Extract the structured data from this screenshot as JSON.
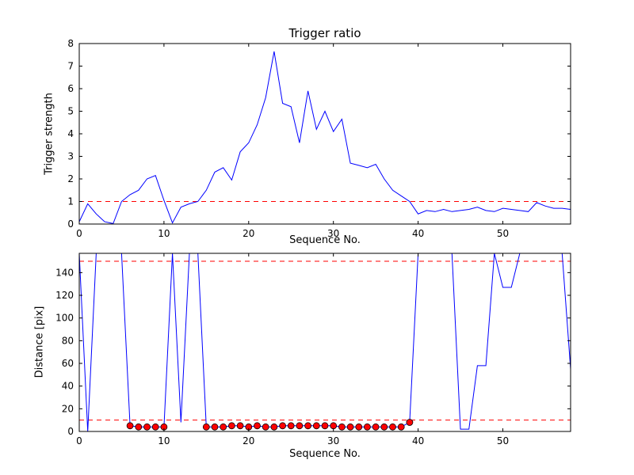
{
  "figure": {
    "background": "#ffffff",
    "colors": {
      "line": "#0000ff",
      "threshold": "#ff0000",
      "marker_face": "#ff0000",
      "marker_edge": "#000000",
      "axis": "#000000"
    }
  },
  "chart_data": [
    {
      "type": "line",
      "title": "Trigger ratio",
      "xlabel": "Sequence No.",
      "ylabel": "Trigger strength",
      "xlim": [
        0,
        58
      ],
      "ylim": [
        0,
        8
      ],
      "xticks": [
        0,
        10,
        20,
        30,
        40,
        50
      ],
      "yticks": [
        0,
        1,
        2,
        3,
        4,
        5,
        6,
        7,
        8
      ],
      "grid": false,
      "legend": "none",
      "threshold_lines": [
        1
      ],
      "x": [
        0,
        1,
        2,
        3,
        4,
        5,
        6,
        7,
        8,
        9,
        10,
        11,
        12,
        13,
        14,
        15,
        16,
        17,
        18,
        19,
        20,
        21,
        22,
        23,
        24,
        25,
        26,
        27,
        28,
        29,
        30,
        31,
        32,
        33,
        34,
        35,
        36,
        37,
        38,
        39,
        40,
        41,
        42,
        43,
        44,
        45,
        46,
        47,
        48,
        49,
        50,
        51,
        52,
        53,
        54,
        55,
        56,
        57,
        58
      ],
      "y": [
        0.1,
        0.9,
        0.45,
        0.1,
        0.02,
        1.0,
        1.3,
        1.5,
        2.0,
        2.15,
        1.05,
        0.05,
        0.75,
        0.9,
        1.0,
        1.5,
        2.3,
        2.5,
        1.95,
        3.2,
        3.6,
        4.4,
        5.6,
        7.65,
        5.35,
        5.2,
        3.6,
        5.9,
        4.2,
        5.0,
        4.1,
        4.65,
        2.7,
        2.6,
        2.5,
        2.65,
        2.0,
        1.5,
        1.25,
        1.0,
        0.45,
        0.6,
        0.55,
        0.65,
        0.55,
        0.6,
        0.65,
        0.75,
        0.6,
        0.55,
        0.7,
        0.65,
        0.6,
        0.55,
        0.95,
        0.8,
        0.7,
        0.7,
        0.65
      ]
    },
    {
      "type": "line",
      "title": "",
      "xlabel": "Sequence No.",
      "ylabel": "Distance [pix]",
      "xlim": [
        0,
        58
      ],
      "ylim": [
        0,
        157
      ],
      "xticks": [
        0,
        10,
        20,
        30,
        40,
        50
      ],
      "yticks": [
        0,
        20,
        40,
        60,
        80,
        100,
        120,
        140
      ],
      "grid": false,
      "legend": "none",
      "threshold_lines": [
        150,
        10
      ],
      "x": [
        0,
        1,
        2,
        3,
        4,
        5,
        6,
        7,
        8,
        9,
        10,
        11,
        12,
        13,
        14,
        15,
        16,
        17,
        18,
        19,
        20,
        21,
        22,
        23,
        24,
        25,
        26,
        27,
        28,
        29,
        30,
        31,
        32,
        33,
        34,
        35,
        36,
        37,
        38,
        39,
        40,
        41,
        42,
        43,
        44,
        45,
        46,
        47,
        48,
        49,
        50,
        51,
        52,
        53,
        54,
        55,
        56,
        57,
        58
      ],
      "y": [
        157,
        0,
        157,
        157,
        157,
        157,
        5,
        4,
        4,
        4,
        4,
        157,
        8,
        157,
        157,
        4,
        4,
        4,
        5,
        5,
        4,
        5,
        4,
        4,
        5,
        5,
        5,
        5,
        5,
        5,
        5,
        4,
        4,
        4,
        4,
        4,
        4,
        4,
        4,
        8,
        157,
        157,
        157,
        157,
        157,
        2,
        2,
        58,
        58,
        157,
        127,
        127,
        157,
        157,
        157,
        157,
        157,
        157,
        55
      ],
      "markers": {
        "type": "scatter",
        "x": [
          6,
          7,
          8,
          9,
          10,
          15,
          16,
          17,
          18,
          19,
          20,
          21,
          22,
          23,
          24,
          25,
          26,
          27,
          28,
          29,
          30,
          31,
          32,
          33,
          34,
          35,
          36,
          37,
          38,
          39
        ],
        "y": [
          5,
          4,
          4,
          4,
          4,
          4,
          4,
          4,
          5,
          5,
          4,
          5,
          4,
          4,
          5,
          5,
          5,
          5,
          5,
          5,
          5,
          4,
          4,
          4,
          4,
          4,
          4,
          4,
          4,
          8
        ]
      }
    }
  ]
}
